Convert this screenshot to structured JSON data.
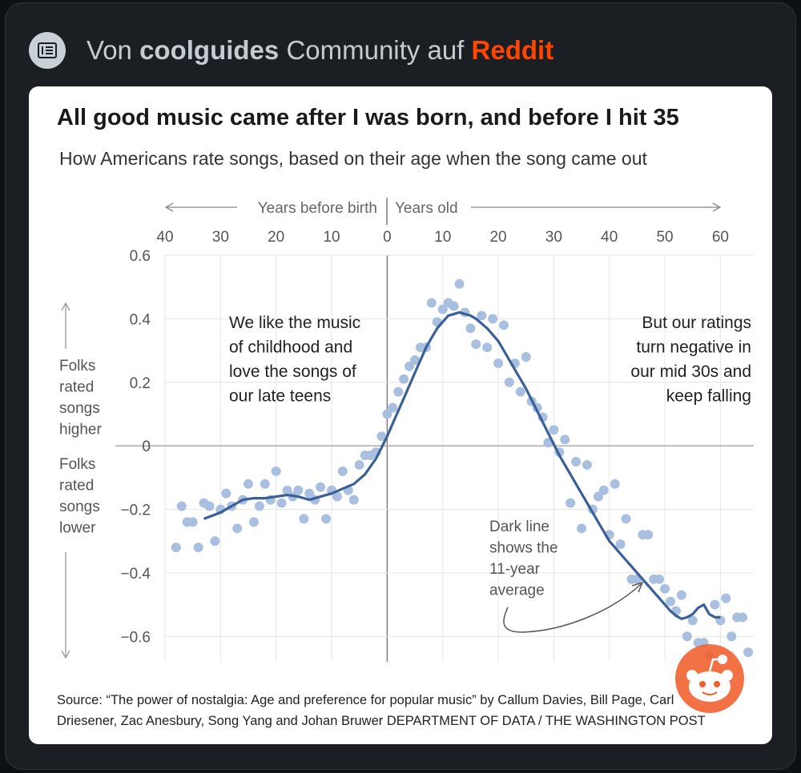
{
  "header": {
    "prefix": "Von",
    "community": "coolguides",
    "middle": "Community auf",
    "platform": "Reddit",
    "icon": "news-feed-icon",
    "platform_color": "#ff4500"
  },
  "chart_data": {
    "type": "scatter",
    "title": "All good music came after I was born, and before I hit 35",
    "subtitle": "How Americans rate songs, based on their age when the song came out",
    "top_axis": {
      "left_label": "Years before birth",
      "right_label": "Years old",
      "tick_labels": [
        "40",
        "30",
        "20",
        "10",
        "0",
        "10",
        "20",
        "30",
        "40",
        "50",
        "60"
      ]
    },
    "x_ticks": [
      -40,
      -30,
      -20,
      -10,
      0,
      10,
      20,
      30,
      40,
      50,
      60
    ],
    "xlim": [
      -40,
      66
    ],
    "ylim": [
      -0.68,
      0.6
    ],
    "y_ticks": [
      {
        "value": 0.6,
        "label": "0.6"
      },
      {
        "value": 0.4,
        "label": "0.4"
      },
      {
        "value": 0.2,
        "label": "0.2"
      },
      {
        "value": 0,
        "label": "0"
      },
      {
        "value": -0.2,
        "label": "−0.2"
      },
      {
        "value": -0.4,
        "label": "−0.4"
      },
      {
        "value": -0.6,
        "label": "−0.6"
      }
    ],
    "y_label_up": [
      "Folks",
      "rated",
      "songs",
      "higher"
    ],
    "y_label_down": [
      "Folks",
      "rated",
      "songs",
      "lower"
    ],
    "grid": true,
    "dot_color": "#a9bfe0",
    "line_color": "#3b5f97",
    "series": [
      {
        "kind": "points",
        "x": [
          -38,
          -37,
          -36,
          -35,
          -34,
          -33,
          -32,
          -31,
          -30,
          -29,
          -28,
          -27,
          -26,
          -25,
          -24,
          -23,
          -22,
          -21,
          -20,
          -19,
          -18,
          -17,
          -16,
          -15,
          -14,
          -13,
          -12,
          -11,
          -10,
          -9,
          -8,
          -7,
          -6,
          -5,
          -4,
          -3,
          -2,
          -1,
          0,
          1,
          2,
          3,
          4,
          5,
          6,
          7,
          8,
          9,
          10,
          11,
          12,
          13,
          14,
          15,
          16,
          17,
          18,
          19,
          20,
          21,
          22,
          23,
          24,
          25,
          26,
          27,
          28,
          29,
          30,
          31,
          32,
          33,
          34,
          35,
          36,
          37,
          38,
          39,
          40,
          41,
          42,
          43,
          44,
          45,
          46,
          47,
          48,
          49,
          50,
          51,
          52,
          53,
          54,
          55,
          56,
          57,
          58,
          59,
          60,
          61,
          62,
          63,
          64,
          65
        ],
        "y": [
          -0.32,
          -0.19,
          -0.24,
          -0.24,
          -0.32,
          -0.18,
          -0.19,
          -0.3,
          -0.2,
          -0.15,
          -0.19,
          -0.26,
          -0.17,
          -0.12,
          -0.24,
          -0.19,
          -0.12,
          -0.17,
          -0.08,
          -0.18,
          -0.14,
          -0.16,
          -0.14,
          -0.23,
          -0.15,
          -0.17,
          -0.13,
          -0.23,
          -0.14,
          -0.16,
          -0.08,
          -0.14,
          -0.17,
          -0.06,
          -0.03,
          -0.03,
          -0.02,
          0.03,
          0.1,
          0.12,
          0.17,
          0.21,
          0.25,
          0.27,
          0.31,
          0.31,
          0.45,
          0.39,
          0.43,
          0.45,
          0.44,
          0.51,
          0.42,
          0.37,
          0.32,
          0.41,
          0.31,
          0.4,
          0.26,
          0.38,
          0.2,
          0.26,
          0.17,
          0.28,
          0.14,
          0.12,
          0.09,
          0.01,
          0.05,
          -0.02,
          0.02,
          -0.18,
          -0.05,
          -0.26,
          -0.06,
          -0.2,
          -0.16,
          -0.14,
          -0.28,
          -0.12,
          -0.31,
          -0.23,
          -0.42,
          -0.42,
          -0.28,
          -0.28,
          -0.42,
          -0.42,
          -0.45,
          -0.49,
          -0.52,
          -0.47,
          -0.6,
          -0.55,
          -0.62,
          -0.62,
          -0.66,
          -0.5,
          -0.55,
          -0.48,
          -0.6,
          -0.54,
          -0.54,
          -0.65
        ]
      },
      {
        "kind": "line",
        "x": [
          -33,
          -30,
          -28,
          -26,
          -24,
          -22,
          -20,
          -18,
          -16,
          -14,
          -12,
          -10,
          -8,
          -6,
          -4,
          -2,
          0,
          1,
          2,
          3,
          4,
          5,
          6,
          7,
          8,
          9,
          10,
          11,
          12,
          13,
          14,
          15,
          16,
          17,
          18,
          19,
          20,
          21,
          22,
          23,
          24,
          25,
          26,
          27,
          28,
          29,
          30,
          31,
          32,
          33,
          34,
          35,
          36,
          37,
          38,
          39,
          40,
          41,
          42,
          43,
          44,
          45,
          46,
          47,
          48,
          49,
          50,
          51,
          52,
          53,
          54,
          55,
          56,
          57,
          58,
          59,
          60
        ],
        "y": [
          -0.23,
          -0.21,
          -0.19,
          -0.17,
          -0.165,
          -0.165,
          -0.16,
          -0.155,
          -0.16,
          -0.17,
          -0.16,
          -0.15,
          -0.135,
          -0.12,
          -0.09,
          -0.04,
          0.03,
          0.07,
          0.11,
          0.15,
          0.19,
          0.23,
          0.27,
          0.31,
          0.34,
          0.37,
          0.39,
          0.41,
          0.415,
          0.42,
          0.415,
          0.41,
          0.4,
          0.385,
          0.37,
          0.35,
          0.33,
          0.3,
          0.27,
          0.24,
          0.21,
          0.18,
          0.145,
          0.11,
          0.075,
          0.04,
          0.005,
          -0.03,
          -0.06,
          -0.09,
          -0.12,
          -0.15,
          -0.18,
          -0.21,
          -0.24,
          -0.27,
          -0.3,
          -0.32,
          -0.34,
          -0.36,
          -0.38,
          -0.4,
          -0.42,
          -0.44,
          -0.46,
          -0.48,
          -0.5,
          -0.52,
          -0.535,
          -0.545,
          -0.54,
          -0.53,
          -0.51,
          -0.5,
          -0.53,
          -0.54,
          -0.54
        ]
      }
    ],
    "annotations": {
      "left": [
        "We like the music",
        "of childhood and",
        "love the songs of",
        "our late teens"
      ],
      "right": [
        "But our ratings",
        "turn negative in",
        "our mid 30s and",
        "keep falling"
      ],
      "line_note": [
        "Dark line",
        "shows the",
        "11-year",
        "average"
      ]
    },
    "source": [
      "Source: “The power of nostalgia: Age and preference for popular music” by Callum Davies, Bill Page, Carl",
      "Driesener, Zac Anesbury, Song Yang and Johan Bruwer DEPARTMENT OF DATA / THE WASHINGTON POST"
    ],
    "watermark_icon": "reddit-snoo-icon"
  }
}
